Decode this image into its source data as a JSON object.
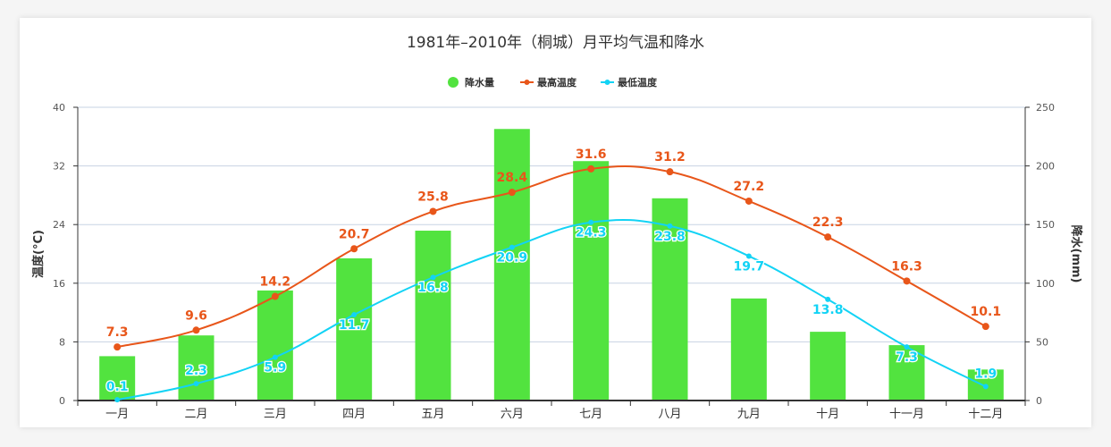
{
  "chart_data": {
    "type": "bar+line",
    "title": "1981年–2010年（桐城）月平均气温和降水",
    "categories": [
      "一月",
      "二月",
      "三月",
      "四月",
      "五月",
      "六月",
      "七月",
      "八月",
      "九月",
      "十月",
      "十一月",
      "十二月"
    ],
    "y_left": {
      "label": "温度(°C)",
      "range": [
        0,
        40
      ],
      "ticks": [
        "0",
        "8",
        "16",
        "24",
        "32",
        "40"
      ]
    },
    "y_right": {
      "label": "降水(mm)",
      "range": [
        0,
        250
      ],
      "ticks": [
        "0",
        "50",
        "100",
        "150",
        "200",
        "250"
      ]
    },
    "grid": true,
    "legend_position": "top-center",
    "series": [
      {
        "name": "降水量",
        "type": "bar",
        "axis": "right",
        "color": "#52e33f",
        "values": [
          37.8,
          55.5,
          93.8,
          121.2,
          144.8,
          231.5,
          204.1,
          172.4,
          87,
          58.6,
          47.2,
          26.4
        ]
      },
      {
        "name": "最高温度",
        "type": "line",
        "axis": "left",
        "color": "#e8561a",
        "values": [
          7.3,
          9.6,
          14.2,
          20.7,
          25.8,
          28.4,
          31.6,
          31.2,
          27.2,
          22.3,
          16.3,
          10.1
        ],
        "labels": [
          "7.3",
          "9.6",
          "14.2",
          "20.7",
          "25.8",
          "28.4",
          "31.6",
          "31.2",
          "27.2",
          "22.3",
          "16.3",
          "10.1"
        ]
      },
      {
        "name": "最低温度",
        "type": "line",
        "axis": "left",
        "color": "#12d3f5",
        "values": [
          0.1,
          2.3,
          5.9,
          11.7,
          16.8,
          20.9,
          24.3,
          23.8,
          19.7,
          13.8,
          7.3,
          1.9
        ],
        "labels": [
          "0.1",
          "2.3",
          "5.9",
          "11.7",
          "16.8",
          "20.9",
          "24.3",
          "23.8",
          "19.7",
          "13.8",
          "7.3",
          "1.9"
        ]
      }
    ]
  }
}
